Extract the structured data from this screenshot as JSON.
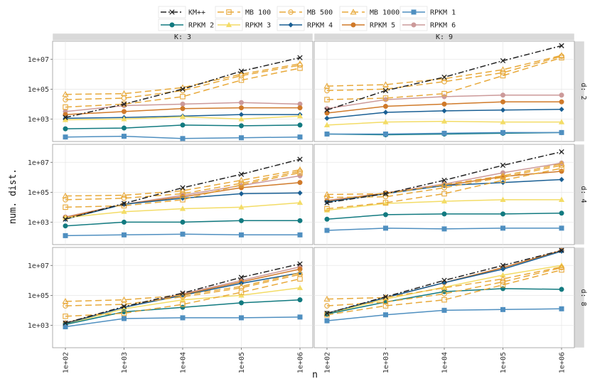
{
  "chart_data": {
    "type": "line",
    "xlabel": "n",
    "ylabel": "num. dist.",
    "x": [
      100,
      1000,
      10000,
      100000,
      1000000
    ],
    "x_tick_labels": [
      "1e+02",
      "1e+03",
      "1e+04",
      "1e+05",
      "1e+06"
    ],
    "y_tick_values": [
      1000,
      100000,
      10000000
    ],
    "y_tick_labels": [
      "1e+03",
      "1e+05",
      "1e+07"
    ],
    "ylim_log10": [
      1.5,
      8.2
    ],
    "column_strips": [
      "K: 3",
      "K: 9"
    ],
    "row_strips": [
      "d: 2",
      "d: 4",
      "d: 8"
    ],
    "legend": [
      {
        "name": "KM++",
        "color": "#222222",
        "dash": "8,3,2,3",
        "marker": "x"
      },
      {
        "name": "MB 100",
        "color": "#e8a93a",
        "dash": "9,5",
        "marker": "square-open"
      },
      {
        "name": "MB 500",
        "color": "#e8a93a",
        "dash": "9,5",
        "marker": "circle-open"
      },
      {
        "name": "MB 1000",
        "color": "#e8a93a",
        "dash": "9,5",
        "marker": "triangle-open"
      },
      {
        "name": "RPKM 1",
        "color": "#4f8fc0",
        "dash": "",
        "marker": "square"
      },
      {
        "name": "RPKM 2",
        "color": "#127a80",
        "dash": "",
        "marker": "circle"
      },
      {
        "name": "RPKM 3",
        "color": "#f3dc66",
        "dash": "",
        "marker": "triangle"
      },
      {
        "name": "RPKM 4",
        "color": "#1a5f94",
        "dash": "",
        "marker": "diamond"
      },
      {
        "name": "RPKM 5",
        "color": "#d07a2a",
        "dash": "",
        "marker": "circle"
      },
      {
        "name": "RPKM 6",
        "color": "#cc9a9a",
        "dash": "",
        "marker": "circle"
      }
    ],
    "panels": [
      {
        "col": 0,
        "row": 0,
        "series": {
          "KM++": [
            3.1,
            4.0,
            5.0,
            6.2,
            7.1
          ],
          "MB 100": [
            3.8,
            4.0,
            4.5,
            5.6,
            6.4
          ],
          "MB 500": [
            4.3,
            4.4,
            4.9,
            5.9,
            6.6
          ],
          "MB 1000": [
            4.65,
            4.7,
            5.1,
            6.0,
            6.7
          ],
          "RPKM 1": [
            1.8,
            1.85,
            1.7,
            1.75,
            1.8
          ],
          "RPKM 2": [
            2.35,
            2.4,
            2.6,
            2.55,
            2.6
          ],
          "RPKM 3": [
            2.95,
            3.0,
            3.15,
            3.0,
            3.2
          ],
          "RPKM 4": [
            3.05,
            3.1,
            3.2,
            3.3,
            3.3
          ],
          "RPKM 5": [
            3.3,
            3.5,
            3.7,
            3.75,
            3.75
          ],
          "RPKM 6": [
            3.5,
            3.9,
            4.0,
            4.1,
            4.0
          ]
        }
      },
      {
        "col": 1,
        "row": 0,
        "series": {
          "KM++": [
            3.6,
            4.9,
            5.8,
            6.9,
            7.9
          ],
          "MB 100": [
            4.3,
            4.4,
            4.7,
            5.9,
            7.1
          ],
          "MB 500": [
            4.9,
            5.0,
            5.5,
            6.1,
            7.2
          ],
          "MB 1000": [
            5.2,
            5.3,
            5.7,
            6.3,
            7.25
          ],
          "RPKM 1": [
            2.0,
            2.0,
            2.05,
            2.1,
            2.1
          ],
          "RPKM 2": [
            2.0,
            1.95,
            2.0,
            2.05,
            2.1
          ],
          "RPKM 3": [
            2.6,
            2.8,
            2.85,
            2.8,
            2.8
          ],
          "RPKM 4": [
            3.05,
            3.45,
            3.55,
            3.6,
            3.65
          ],
          "RPKM 5": [
            3.4,
            3.85,
            4.0,
            4.15,
            4.15
          ],
          "RPKM 6": [
            3.7,
            4.3,
            4.5,
            4.6,
            4.6
          ]
        }
      },
      {
        "col": 0,
        "row": 1,
        "series": {
          "KM++": [
            3.2,
            4.25,
            5.3,
            6.2,
            7.2
          ],
          "MB 100": [
            4.0,
            4.1,
            4.5,
            5.5,
            6.3
          ],
          "MB 500": [
            4.5,
            4.6,
            4.9,
            5.6,
            6.4
          ],
          "MB 1000": [
            4.75,
            4.8,
            5.1,
            5.8,
            6.5
          ],
          "RPKM 1": [
            2.1,
            2.15,
            2.2,
            2.15,
            2.15
          ],
          "RPKM 2": [
            2.75,
            3.0,
            3.0,
            3.1,
            3.1
          ],
          "RPKM 3": [
            3.3,
            3.7,
            3.9,
            4.0,
            4.3
          ],
          "RPKM 4": [
            3.2,
            4.2,
            4.6,
            4.9,
            4.95
          ],
          "RPKM 5": [
            3.3,
            4.2,
            4.7,
            5.3,
            5.65
          ],
          "RPKM 6": [
            3.35,
            4.2,
            4.8,
            5.45,
            6.1
          ]
        }
      },
      {
        "col": 1,
        "row": 1,
        "series": {
          "KM++": [
            4.3,
            4.9,
            5.8,
            6.8,
            7.7
          ],
          "MB 100": [
            3.9,
            4.3,
            4.9,
            5.8,
            6.6
          ],
          "MB 500": [
            4.65,
            4.7,
            5.3,
            6.0,
            6.8
          ],
          "MB 1000": [
            4.85,
            4.9,
            5.5,
            6.1,
            6.9
          ],
          "RPKM 1": [
            2.45,
            2.6,
            2.55,
            2.6,
            2.6
          ],
          "RPKM 2": [
            3.2,
            3.5,
            3.55,
            3.55,
            3.6
          ],
          "RPKM 3": [
            3.8,
            4.25,
            4.4,
            4.5,
            4.5
          ],
          "RPKM 4": [
            4.35,
            4.9,
            5.45,
            5.65,
            5.85
          ],
          "RPKM 5": [
            4.4,
            4.95,
            5.45,
            6.05,
            6.4
          ],
          "RPKM 6": [
            4.45,
            4.95,
            5.55,
            6.3,
            6.95
          ]
        }
      },
      {
        "col": 0,
        "row": 2,
        "series": {
          "KM++": [
            3.15,
            4.25,
            5.15,
            6.2,
            7.1
          ],
          "MB 100": [
            3.6,
            3.8,
            4.4,
            5.2,
            6.1
          ],
          "MB 500": [
            4.3,
            4.4,
            4.9,
            5.5,
            6.4
          ],
          "MB 1000": [
            4.6,
            4.7,
            5.0,
            5.6,
            6.5
          ],
          "RPKM 1": [
            2.9,
            3.45,
            3.5,
            3.5,
            3.55
          ],
          "RPKM 2": [
            3.05,
            3.9,
            4.2,
            4.5,
            4.7
          ],
          "RPKM 3": [
            3.05,
            4.1,
            4.7,
            5.0,
            5.5
          ],
          "RPKM 4": [
            3.1,
            4.2,
            5.0,
            5.8,
            6.5
          ],
          "RPKM 5": [
            3.15,
            4.2,
            5.05,
            5.9,
            6.75
          ],
          "RPKM 6": [
            3.15,
            4.2,
            5.1,
            6.0,
            6.9
          ]
        }
      },
      {
        "col": 1,
        "row": 2,
        "series": {
          "KM++": [
            3.8,
            4.9,
            6.0,
            7.0,
            8.0
          ],
          "MB 100": [
            3.7,
            4.3,
            4.7,
            5.7,
            6.7
          ],
          "MB 500": [
            4.3,
            4.55,
            5.1,
            5.9,
            6.85
          ],
          "MB 1000": [
            4.75,
            4.85,
            5.5,
            6.1,
            6.9
          ],
          "RPKM 1": [
            3.3,
            3.7,
            4.0,
            4.05,
            4.1
          ],
          "RPKM 2": [
            3.75,
            4.55,
            5.25,
            5.45,
            5.4
          ],
          "RPKM 3": [
            3.75,
            4.75,
            5.55,
            6.35,
            7.0
          ],
          "RPKM 4": [
            3.8,
            4.85,
            5.85,
            6.75,
            7.95
          ],
          "RPKM 5": [
            3.8,
            4.85,
            5.85,
            6.85,
            8.0
          ],
          "RPKM 6": [
            3.8,
            4.85,
            5.85,
            6.85,
            8.0
          ]
        }
      }
    ]
  }
}
